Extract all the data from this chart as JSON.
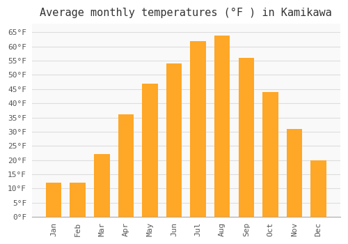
{
  "title": "Average monthly temperatures (°F ) in Kamikawa",
  "months": [
    "Jan",
    "Feb",
    "Mar",
    "Apr",
    "May",
    "Jun",
    "Jul",
    "Aug",
    "Sep",
    "Oct",
    "Nov",
    "Dec"
  ],
  "values": [
    12,
    12,
    22,
    36,
    47,
    54,
    62,
    64,
    56,
    44,
    31,
    20
  ],
  "bar_color": "#FFA726",
  "bar_edge_color": "#FFB74D",
  "background_color": "#ffffff",
  "plot_bg_color": "#f9f9f9",
  "grid_color": "#dddddd",
  "ylim": [
    0,
    68
  ],
  "yticks": [
    0,
    5,
    10,
    15,
    20,
    25,
    30,
    35,
    40,
    45,
    50,
    55,
    60,
    65
  ],
  "title_fontsize": 11,
  "tick_fontsize": 8,
  "title_font": "monospace",
  "bar_width": 0.65
}
